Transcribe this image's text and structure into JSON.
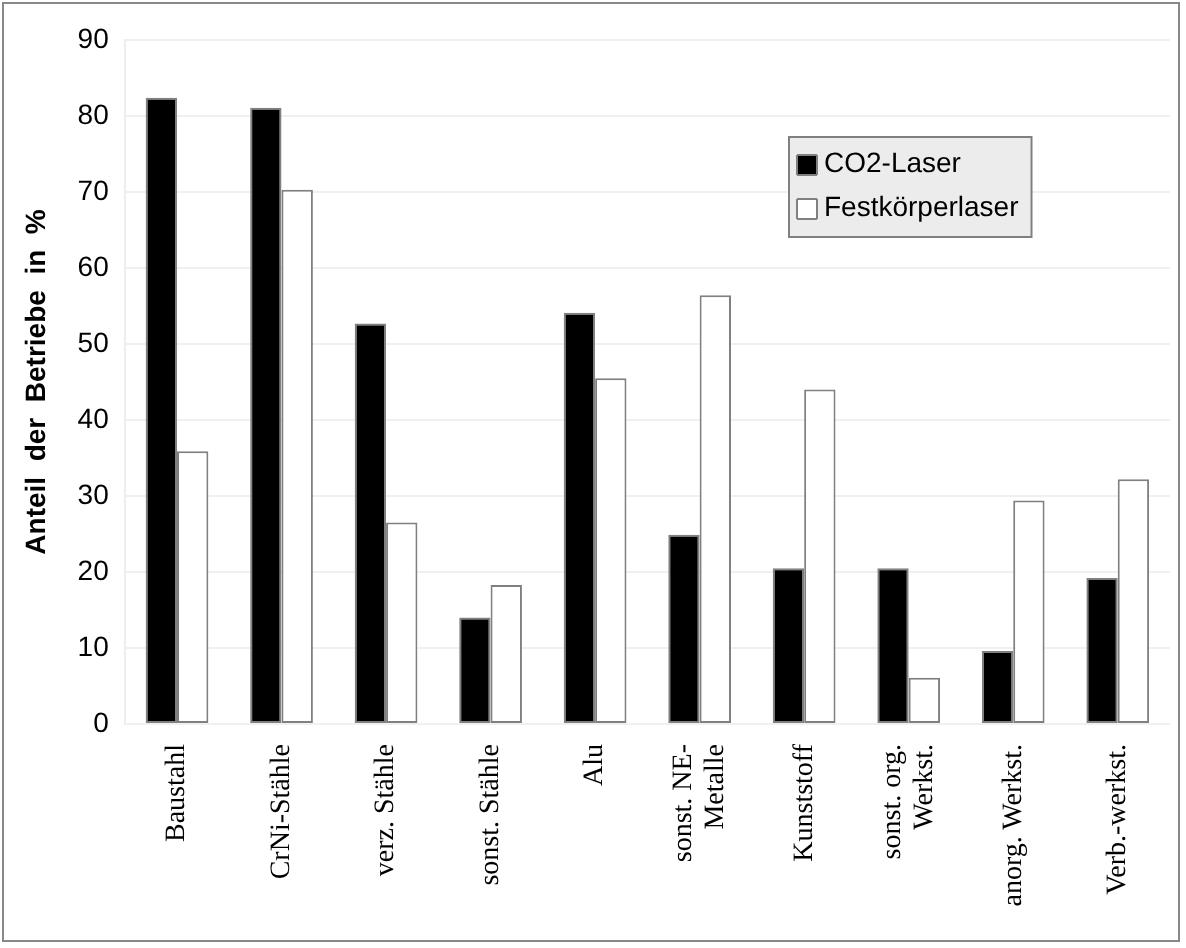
{
  "chart_data": {
    "type": "bar",
    "ylabel": "Anteil  der  Betriebe  in  %",
    "categories": [
      "Baustahl",
      "CrNi-Stähle",
      "verz. Stähle",
      "sonst. Stähle",
      "Alu",
      "sonst. NE-\nMetalle",
      "Kunststoff",
      "sonst. org.\nWerkst.",
      "anorg. Werkst.",
      "Verb.-werkst."
    ],
    "series": [
      {
        "name": "CO2-Laser",
        "color": "#000000",
        "values": [
          82.4,
          81.1,
          52.7,
          14,
          54.1,
          24.9,
          20.5,
          20.5,
          9.6,
          19.2
        ]
      },
      {
        "name": "Festkörperlaser",
        "color": "#ffffff",
        "values": [
          35.9,
          70.3,
          26.5,
          18.3,
          45.5,
          56.4,
          44,
          6.1,
          29.4,
          32.2
        ]
      }
    ],
    "ylim": [
      0,
      90
    ],
    "yticks": [
      0,
      10,
      20,
      30,
      40,
      50,
      60,
      70,
      80,
      90
    ],
    "grid": "y",
    "legend": "top right"
  }
}
